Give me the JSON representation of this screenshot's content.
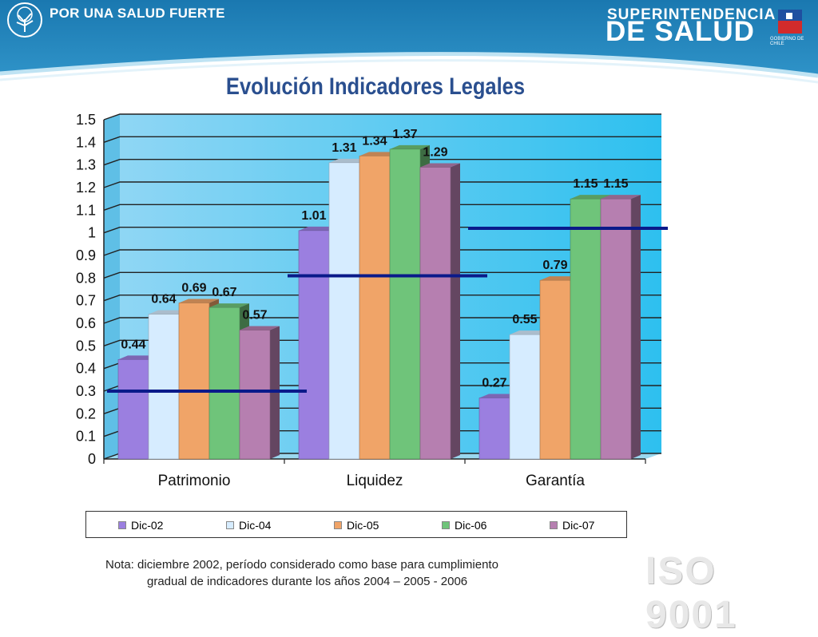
{
  "header": {
    "slogan": "POR UNA SALUD FUERTE",
    "org_line1": "SUPERINTENDENCIA",
    "org_line2": "DE SALUD",
    "gov_text": "GOBIERNO DE CHILE"
  },
  "watermark": {
    "text": "ISO 9001"
  },
  "note": {
    "line1": "Nota: diciembre 2002, período considerado como base para cumplimiento",
    "line2": "gradual de indicadores durante los años 2004 – 2005 - 2006"
  },
  "colors": {
    "header_blue": "#1f7fb4",
    "title_blue": "#2a4f8f",
    "plot_bg": "#7fd0f2",
    "threshold_line": "#0a1a8a"
  },
  "chart_data": {
    "type": "bar",
    "title": "Evolución Indicadores Legales",
    "categories": [
      "Patrimonio",
      "Liquidez",
      "Garantía"
    ],
    "ylim": [
      0,
      1.5
    ],
    "yticks": [
      "0",
      "0.1",
      "0.2",
      "0.3",
      "0.4",
      "0.5",
      "0.6",
      "0.7",
      "0.8",
      "0.9",
      "1",
      "1.1",
      "1.2",
      "1.3",
      "1.4",
      "1.5"
    ],
    "grid": true,
    "legend_position": "bottom",
    "series": [
      {
        "name": "Dic-02",
        "values": [
          0.44,
          1.01,
          0.27
        ],
        "labels": [
          "0.44",
          "1.01",
          "0.27"
        ],
        "color": "#9b7fe0"
      },
      {
        "name": "Dic-04",
        "values": [
          0.64,
          1.31,
          0.55
        ],
        "labels": [
          "0.64",
          "1.31",
          "0.55"
        ],
        "color": "#d6ecff"
      },
      {
        "name": "Dic-05",
        "values": [
          0.69,
          1.34,
          0.79
        ],
        "labels": [
          "0.69",
          "1.34",
          "0.79"
        ],
        "color": "#f0a468"
      },
      {
        "name": "Dic-06",
        "values": [
          0.67,
          1.37,
          1.15
        ],
        "labels": [
          "0.67",
          "1.37",
          "1.15"
        ],
        "color": "#6fc47a"
      },
      {
        "name": "Dic-07",
        "values": [
          0.57,
          1.29,
          1.15
        ],
        "labels": [
          "0.57",
          "1.29",
          "1.15"
        ],
        "color": "#b67fb0"
      }
    ],
    "thresholds": [
      0.3,
      0.81,
      1.02
    ]
  }
}
